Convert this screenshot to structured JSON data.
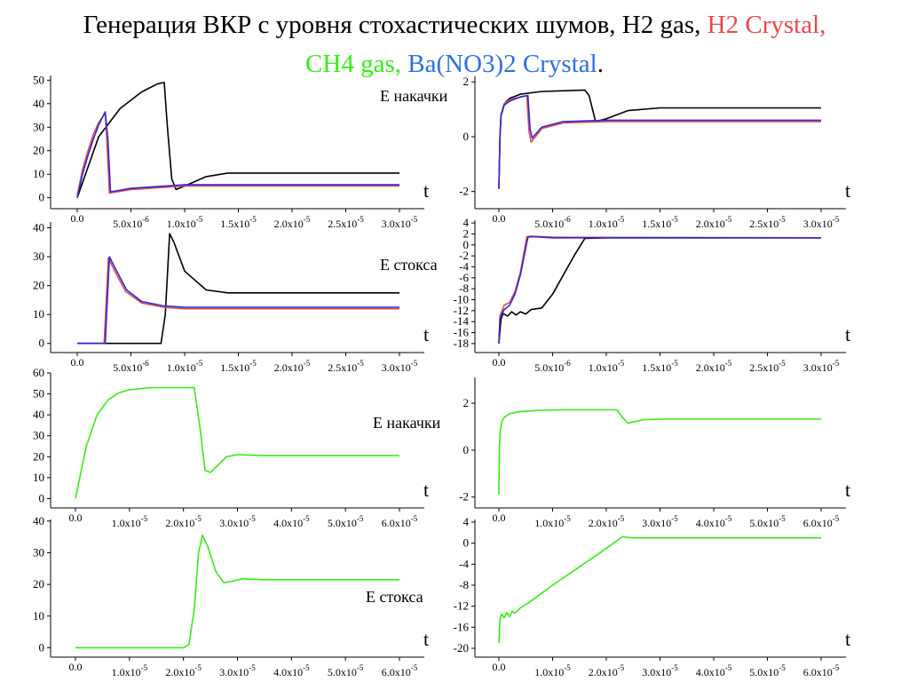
{
  "title": {
    "prefix": "Генерация ВКР с уровня стохастических шумов, H2 gas,",
    "h2_crystal": "H2 Crystal,",
    "ch4_gas": "CH4 gas,",
    "ba_crystal": "Ba(NO3)2 Crystal",
    "end": "."
  },
  "colors": {
    "h2_gas": "#000000",
    "h2_crystal": "#e8484a",
    "ba_crystal": "#2a2ad8",
    "ch4_gas": "#33ee11"
  },
  "chart_data": [
    {
      "type": "line",
      "id": "p1",
      "xlim": [
        0,
        3e-05
      ],
      "ylim": [
        -2,
        52
      ],
      "yticks": [
        0,
        10,
        20,
        30,
        40,
        50
      ],
      "xtick_labels": [
        "0.0",
        "5.0x10-6",
        "1.0x10-5",
        "1.5x10-5",
        "2.0x10-5",
        "2.5x10-5",
        "3.0x10-5"
      ],
      "xticks": [
        0,
        5e-06,
        1e-05,
        1.5e-05,
        2e-05,
        2.5e-05,
        3e-05
      ],
      "xlabel": "t",
      "series": [
        {
          "color": "h2_gas",
          "x": [
            0,
            2e-06,
            4e-06,
            6e-06,
            7.5e-06,
            8.1e-06,
            8.4e-06,
            8.8e-06,
            9.2e-06,
            1e-05,
            1.2e-05,
            1.4e-05,
            1.6e-05,
            3e-05
          ],
          "y": [
            0,
            26,
            38,
            45,
            48.5,
            49,
            30,
            8,
            3.5,
            5,
            9,
            10.5,
            10.5,
            10.5
          ]
        },
        {
          "color": "h2_crystal",
          "x": [
            0,
            5e-07,
            1e-06,
            1.5e-06,
            2e-06,
            2.6e-06,
            2.75e-06,
            3e-06,
            5e-06,
            1e-05,
            3e-05
          ],
          "y": [
            1,
            12,
            20,
            27,
            32,
            36,
            25,
            2,
            3.5,
            5,
            5
          ]
        },
        {
          "color": "ba_crystal",
          "x": [
            0,
            5e-07,
            1e-06,
            1.5e-06,
            2e-06,
            2.6e-06,
            2.85e-06,
            3.1e-06,
            5e-06,
            1e-05,
            3e-05
          ],
          "y": [
            0,
            10,
            18,
            25,
            31,
            36.5,
            25,
            2.5,
            4,
            5.5,
            5.5
          ]
        }
      ]
    },
    {
      "type": "line",
      "id": "p2",
      "xlim": [
        0,
        3e-05
      ],
      "ylim": [
        -2.4,
        2.2
      ],
      "yticks": [
        -2,
        0,
        2
      ],
      "xtick_labels": [
        "0.0",
        "5.0x10-6",
        "1.0x10-5",
        "1.5x10-5",
        "2.0x10-5",
        "2.5x10-5",
        "3.0x10-5"
      ],
      "xticks": [
        0,
        5e-06,
        1e-05,
        1.5e-05,
        2e-05,
        2.5e-05,
        3e-05
      ],
      "ylabel": "E накачки",
      "xlabel": "t",
      "series": [
        {
          "color": "h2_gas",
          "x": [
            0,
            1e-07,
            2e-07,
            5e-07,
            1e-06,
            2e-06,
            4e-06,
            8e-06,
            8.4e-06,
            9e-06,
            1e-05,
            1.2e-05,
            1.5e-05,
            3e-05
          ],
          "y": [
            -1.9,
            0,
            0.8,
            1.2,
            1.4,
            1.55,
            1.65,
            1.7,
            1.5,
            0.55,
            0.65,
            0.95,
            1.05,
            1.05
          ]
        },
        {
          "color": "h2_crystal",
          "x": [
            0,
            1e-07,
            2e-07,
            5e-07,
            1e-06,
            2e-06,
            2.6e-06,
            2.8e-06,
            3e-06,
            4e-06,
            6e-06,
            1e-05,
            3e-05
          ],
          "y": [
            -1.9,
            0,
            0.8,
            1.2,
            1.35,
            1.45,
            1.5,
            0.2,
            -0.2,
            0.3,
            0.5,
            0.55,
            0.55
          ]
        },
        {
          "color": "ba_crystal",
          "x": [
            0,
            1e-07,
            2e-07,
            5e-07,
            1e-06,
            2e-06,
            2.7e-06,
            2.9e-06,
            3.1e-06,
            4e-06,
            6e-06,
            1e-05,
            3e-05
          ],
          "y": [
            -1.9,
            0,
            0.75,
            1.15,
            1.3,
            1.45,
            1.5,
            0.3,
            -0.05,
            0.35,
            0.55,
            0.6,
            0.6
          ]
        }
      ]
    },
    {
      "type": "line",
      "id": "p3",
      "xlim": [
        0,
        3e-05
      ],
      "ylim": [
        -1,
        42
      ],
      "yticks": [
        0,
        10,
        20,
        30,
        40
      ],
      "xtick_labels": [
        "0.0",
        "5.0x10-6",
        "1.0x10-5",
        "1.5x10-5",
        "2.0x10-5",
        "2.5x10-5",
        "3.0x10-5"
      ],
      "xticks": [
        0,
        5e-06,
        1e-05,
        1.5e-05,
        2e-05,
        2.5e-05,
        3e-05
      ],
      "xlabel": "t",
      "series": [
        {
          "color": "h2_gas",
          "x": [
            0,
            7.8e-06,
            8.2e-06,
            8.6e-06,
            9e-06,
            1e-05,
            1.2e-05,
            1.4e-05,
            3e-05
          ],
          "y": [
            0,
            0,
            10,
            38,
            35,
            25,
            18.5,
            17.5,
            17.5
          ]
        },
        {
          "color": "h2_crystal",
          "x": [
            0,
            2.5e-06,
            2.7e-06,
            2.9e-06,
            3.5e-06,
            4.5e-06,
            6e-06,
            8e-06,
            1e-05,
            3e-05
          ],
          "y": [
            0,
            0,
            15,
            29.5,
            25,
            18,
            14,
            12.5,
            12,
            12
          ]
        },
        {
          "color": "ba_crystal",
          "x": [
            0,
            2.6e-06,
            2.8e-06,
            3e-06,
            3.6e-06,
            4.6e-06,
            6e-06,
            8e-06,
            1e-05,
            3e-05
          ],
          "y": [
            0,
            0,
            15,
            30,
            25.5,
            18.5,
            14.5,
            13,
            12.5,
            12.5
          ]
        }
      ]
    },
    {
      "type": "line",
      "id": "p4",
      "xlim": [
        0,
        3e-05
      ],
      "ylim": [
        -18.5,
        4.5
      ],
      "yticks": [
        -18,
        -16,
        -14,
        -12,
        -10,
        -8,
        -6,
        -4,
        -2,
        0,
        2,
        4
      ],
      "xtick_labels": [
        "0.0",
        "5.0x10-6",
        "1.0x10-5",
        "1.5x10-5",
        "2.0x10-5",
        "2.5x10-5",
        "3.0x10-5"
      ],
      "xticks": [
        0,
        5e-06,
        1e-05,
        1.5e-05,
        2e-05,
        2.5e-05,
        3e-05
      ],
      "ylabel": "E стокса",
      "xlabel": "t",
      "series": [
        {
          "color": "h2_gas",
          "x": [
            0,
            2e-07,
            4e-07,
            8e-07,
            1.2e-06,
            1.6e-06,
            2e-06,
            2.5e-06,
            3e-06,
            4e-06,
            5e-06,
            6e-06,
            7e-06,
            8e-06,
            1e-05,
            3e-05
          ],
          "y": [
            -18,
            -13.5,
            -12.5,
            -13,
            -12.2,
            -12.8,
            -12.2,
            -12.6,
            -11.8,
            -11.5,
            -9,
            -5.5,
            -2,
            1.2,
            1.3,
            1.3
          ]
        },
        {
          "color": "h2_crystal",
          "x": [
            0,
            1e-07,
            3e-07,
            5e-07,
            1e-06,
            1.5e-06,
            2e-06,
            2.6e-06,
            3e-06,
            5e-06,
            3e-05
          ],
          "y": [
            -18,
            -13,
            -12,
            -11,
            -10.5,
            -8.5,
            -5,
            1.5,
            1.6,
            1.4,
            1.3
          ]
        },
        {
          "color": "ba_crystal",
          "x": [
            0,
            1e-07,
            3e-07,
            5e-07,
            1e-06,
            1.5e-06,
            2e-06,
            2.7e-06,
            3.1e-06,
            5e-06,
            3e-05
          ],
          "y": [
            -18,
            -13.5,
            -12.5,
            -11.8,
            -11,
            -9,
            -5.5,
            1.4,
            1.5,
            1.3,
            1.3
          ]
        }
      ]
    },
    {
      "type": "line",
      "id": "p5",
      "xlim": [
        0,
        6e-05
      ],
      "ylim": [
        -1.5,
        60
      ],
      "yticks": [
        0,
        10,
        20,
        30,
        40,
        50,
        60
      ],
      "xtick_labels": [
        "0.0",
        "1.0x10-5",
        "2.0x10-5",
        "3.0x10-5",
        "4.0x10-5",
        "5.0x10-5",
        "6.0x10-5"
      ],
      "xticks": [
        0,
        1e-05,
        2e-05,
        3e-05,
        4e-05,
        5e-05,
        6e-05
      ],
      "xlabel": "t",
      "series": [
        {
          "color": "ch4_gas",
          "x": [
            0,
            2e-06,
            4e-06,
            6e-06,
            8e-06,
            1e-05,
            1.4e-05,
            2.2e-05,
            2.3e-05,
            2.4e-05,
            2.5e-05,
            2.6e-05,
            2.8e-05,
            3e-05,
            3.5e-05,
            6e-05
          ],
          "y": [
            0,
            25,
            40,
            47,
            50.5,
            52,
            53,
            53,
            35,
            13.5,
            12.5,
            15,
            20,
            21,
            20.5,
            20.5
          ]
        }
      ]
    },
    {
      "type": "line",
      "id": "p6",
      "xlim": [
        0,
        6e-05
      ],
      "ylim": [
        -2.2,
        3.1
      ],
      "yticks": [
        -2,
        0,
        2
      ],
      "xtick_labels": [
        "0.0",
        "1.0x10-5",
        "2.0x10-5",
        "3.0x10-5",
        "4.0x10-5",
        "5.0x10-5",
        "6.0x10-5"
      ],
      "xticks": [
        0,
        1e-05,
        2e-05,
        3e-05,
        4e-05,
        5e-05,
        6e-05
      ],
      "ylabel": "E накачки",
      "xlabel": "t",
      "series": [
        {
          "color": "ch4_gas",
          "x": [
            0,
            1e-07,
            3e-07,
            6e-07,
            1e-06,
            2e-06,
            4e-06,
            8e-06,
            1.2e-05,
            2.2e-05,
            2.3e-05,
            2.4e-05,
            2.5e-05,
            2.7e-05,
            3e-05,
            6e-05
          ],
          "y": [
            -1.9,
            0.2,
            0.9,
            1.25,
            1.4,
            1.55,
            1.65,
            1.7,
            1.72,
            1.72,
            1.4,
            1.15,
            1.2,
            1.3,
            1.32,
            1.32
          ]
        }
      ]
    },
    {
      "type": "line",
      "id": "p7",
      "xlim": [
        0,
        6e-05
      ],
      "ylim": [
        -1,
        40.5
      ],
      "yticks": [
        0,
        10,
        20,
        30,
        40
      ],
      "xtick_labels": [
        "0.0",
        "1.0x10-5",
        "2.0x10-5",
        "3.0x10-5",
        "4.0x10-5",
        "5.0x10-5",
        "6.0x10-5"
      ],
      "xticks": [
        0,
        1e-05,
        2e-05,
        3e-05,
        4e-05,
        5e-05,
        6e-05
      ],
      "ylabel": "E стокса",
      "xlabel": "t",
      "series": [
        {
          "color": "ch4_gas",
          "x": [
            0,
            2e-05,
            2.1e-05,
            2.2e-05,
            2.28e-05,
            2.35e-05,
            2.45e-05,
            2.6e-05,
            2.75e-05,
            2.9e-05,
            3.1e-05,
            3.5e-05,
            6e-05
          ],
          "y": [
            0,
            0,
            1,
            12,
            30,
            35.5,
            32,
            24,
            20.5,
            21,
            21.8,
            21.5,
            21.5
          ]
        }
      ]
    },
    {
      "type": "line",
      "id": "p8",
      "xlim": [
        0,
        6e-05
      ],
      "ylim": [
        -20.5,
        4.5
      ],
      "yticks": [
        -20,
        -16,
        -12,
        -8,
        -4,
        0,
        4
      ],
      "xtick_labels": [
        "0.0",
        "1.0x10-5",
        "2.0x10-5",
        "3.0x10-5",
        "4.0x10-5",
        "5.0x10-5",
        "6.0x10-5"
      ],
      "xticks": [
        0,
        1e-05,
        2e-05,
        3e-05,
        4e-05,
        5e-05,
        6e-05
      ],
      "xlabel": "t",
      "series": [
        {
          "color": "ch4_gas",
          "x": [
            0,
            2e-07,
            5e-07,
            1e-06,
            1.5e-06,
            2e-06,
            2.5e-06,
            3e-06,
            4e-06,
            6e-06,
            1e-05,
            1.5e-05,
            2e-05,
            2.3e-05,
            2.5e-05,
            3e-05,
            6e-05
          ],
          "y": [
            -19,
            -14.5,
            -13.5,
            -14.2,
            -13.2,
            -14,
            -13,
            -13.3,
            -12.3,
            -11,
            -8,
            -4.5,
            -1,
            1.2,
            1,
            1,
            1
          ]
        }
      ]
    }
  ]
}
